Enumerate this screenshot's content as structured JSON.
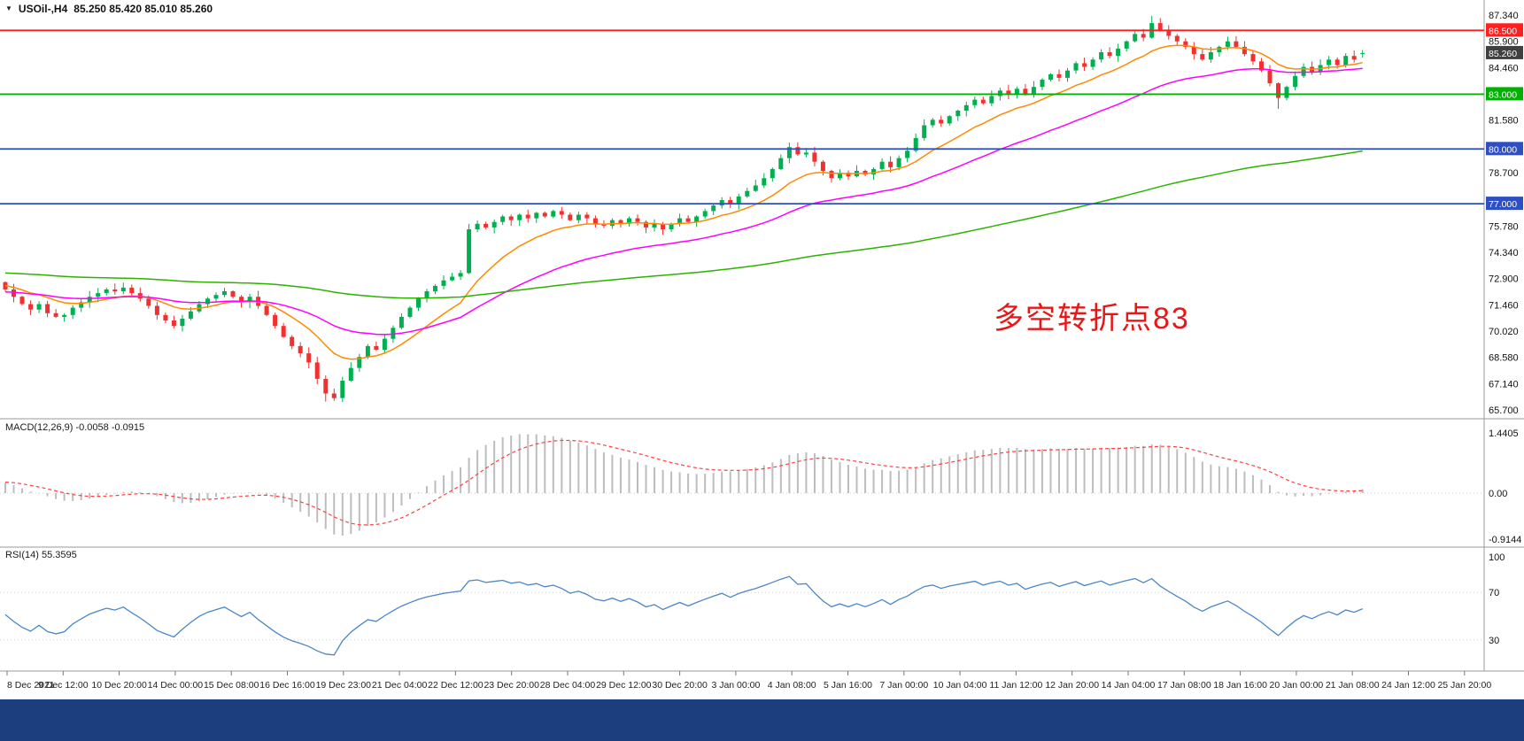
{
  "header": {
    "dropdown_icon": "▼",
    "symbol_label": "USOil-,H4",
    "ohlc_text": "85.250 85.420 85.010 85.260"
  },
  "annotation": {
    "text": "多空转折点83",
    "color": "#e81717"
  },
  "colors": {
    "up": "#00b050",
    "down": "#f23030",
    "macd_hist": "#bdbdbd",
    "macd_signal": "#ff4040",
    "rsi_line": "#4a86c8",
    "bottom_bar": "#1c3e7e",
    "axis_text": "#111111"
  },
  "panes": {
    "macd": {
      "title": "MACD(12,26,9) -0.0058 -0.0915",
      "levels": [
        "1.4405",
        "0.00",
        "-0.9144"
      ]
    },
    "rsi": {
      "title": "RSI(14) 55.3595",
      "levels": [
        {
          "text": "100",
          "value": 100
        },
        {
          "text": "70",
          "value": 70
        },
        {
          "text": "30",
          "value": 30
        }
      ]
    }
  },
  "chart_data": {
    "type": "candlestick",
    "symbol": "USOil-",
    "timeframe": "H4",
    "last_candle": {
      "open": 85.25,
      "high": 85.42,
      "low": 85.01,
      "close": 85.26
    },
    "y_range": [
      65.7,
      87.34
    ],
    "price_ticks": [
      {
        "text": "87.340",
        "value": 87.34
      },
      {
        "text": "85.900",
        "value": 85.9
      },
      {
        "text": "84.460",
        "value": 84.46
      },
      {
        "text": "81.580",
        "value": 81.58
      },
      {
        "text": "78.700",
        "value": 78.7
      },
      {
        "text": "75.780",
        "value": 75.78
      },
      {
        "text": "74.340",
        "value": 74.34
      },
      {
        "text": "72.900",
        "value": 72.9
      },
      {
        "text": "71.460",
        "value": 71.46
      },
      {
        "text": "70.020",
        "value": 70.02
      },
      {
        "text": "68.580",
        "value": 68.58
      },
      {
        "text": "67.140",
        "value": 67.14
      },
      {
        "text": "65.700",
        "value": 65.7
      }
    ],
    "price_badges": [
      {
        "text": "86.500",
        "value": 86.5,
        "bg": "#ff1f1f"
      },
      {
        "text": "85.260",
        "value": 85.26,
        "bg": "#3f3f3f"
      },
      {
        "text": "83.000",
        "value": 83.0,
        "bg": "#00b200"
      },
      {
        "text": "80.000",
        "value": 80.0,
        "bg": "#2e4fc4"
      },
      {
        "text": "77.000",
        "value": 77.0,
        "bg": "#2e4fc4"
      }
    ],
    "hlines": [
      {
        "label": "86.500",
        "value": 86.5,
        "color": "#ff1f1f"
      },
      {
        "label": "83.000",
        "value": 83.0,
        "color": "#00b200"
      },
      {
        "label": "80.000",
        "value": 80.0,
        "color": "#2e4fc4"
      },
      {
        "label": "77.000",
        "value": 77.0,
        "color": "#2e4fc4"
      }
    ],
    "time_labels": [
      "8 Dec 2021",
      "9 Dec 12:00",
      "10 Dec 20:00",
      "14 Dec 00:00",
      "15 Dec 08:00",
      "16 Dec 16:00",
      "19 Dec 23:00",
      "21 Dec 04:00",
      "22 Dec 12:00",
      "23 Dec 20:00",
      "28 Dec 04:00",
      "29 Dec 12:00",
      "30 Dec 20:00",
      "3 Jan 00:00",
      "4 Jan 08:00",
      "5 Jan 16:00",
      "7 Jan 00:00",
      "10 Jan 04:00",
      "11 Jan 12:00",
      "12 Jan 20:00",
      "14 Jan 04:00",
      "17 Jan 08:00",
      "18 Jan 16:00",
      "20 Jan 00:00",
      "21 Jan 08:00",
      "24 Jan 12:00",
      "25 Jan 20:00"
    ],
    "moving_averages": [
      {
        "name": "ma-fast",
        "period": 12,
        "color": "#ff8a00"
      },
      {
        "name": "ma-mid",
        "period": 34,
        "color": "#ff00ff"
      },
      {
        "name": "ma-slow",
        "period": 144,
        "color": "#2db200"
      }
    ],
    "indicators": [
      {
        "name": "MACD",
        "params": [
          12,
          26,
          9
        ],
        "current": [
          -0.0058,
          -0.0915
        ]
      },
      {
        "name": "RSI",
        "params": [
          14
        ],
        "current": 55.3595
      }
    ],
    "closes": [
      72.3,
      71.9,
      71.5,
      71.2,
      71.5,
      71.0,
      70.8,
      70.9,
      71.3,
      71.6,
      71.9,
      72.1,
      72.3,
      72.2,
      72.4,
      72.1,
      71.8,
      71.4,
      70.9,
      70.6,
      70.3,
      70.7,
      71.1,
      71.5,
      71.8,
      72.0,
      72.2,
      71.9,
      71.6,
      71.9,
      71.4,
      70.9,
      70.3,
      69.7,
      69.2,
      68.8,
      68.3,
      67.4,
      66.6,
      66.35,
      67.3,
      68.0,
      68.6,
      69.2,
      69.0,
      69.6,
      70.2,
      70.8,
      71.3,
      71.8,
      72.2,
      72.5,
      72.8,
      73.0,
      73.2,
      75.6,
      75.9,
      75.7,
      76.0,
      76.3,
      76.1,
      76.4,
      76.2,
      76.5,
      76.3,
      76.6,
      76.4,
      76.1,
      76.4,
      76.2,
      75.9,
      75.8,
      76.1,
      75.9,
      76.2,
      76.0,
      75.7,
      75.9,
      75.6,
      75.9,
      76.2,
      76.0,
      76.3,
      76.6,
      76.9,
      77.2,
      77.0,
      77.4,
      77.7,
      78.0,
      78.4,
      78.9,
      79.5,
      80.1,
      79.7,
      79.8,
      79.3,
      78.8,
      78.4,
      78.7,
      78.5,
      78.8,
      78.6,
      78.9,
      79.3,
      79.0,
      79.5,
      79.9,
      80.6,
      81.3,
      81.6,
      81.4,
      81.8,
      82.1,
      82.4,
      82.7,
      82.5,
      82.9,
      83.2,
      83.0,
      83.3,
      83.0,
      83.4,
      83.8,
      84.1,
      83.9,
      84.3,
      84.7,
      84.5,
      84.9,
      85.3,
      85.1,
      85.5,
      85.9,
      86.3,
      86.1,
      86.9,
      86.5,
      86.2,
      85.9,
      85.6,
      85.2,
      84.9,
      85.3,
      85.6,
      85.9,
      85.6,
      85.2,
      84.8,
      84.3,
      83.6,
      82.8,
      83.4,
      84.0,
      84.5,
      84.2,
      84.6,
      84.9,
      84.6,
      85.1,
      84.9,
      85.26
    ],
    "pre_window_closes": [
      74.8,
      74.6,
      74.7,
      74.4,
      74.2,
      74.3,
      74.0,
      73.8,
      73.9,
      73.6,
      73.4,
      73.2,
      73.3,
      73.0,
      72.7,
      72.4,
      72.5,
      72.1,
      71.8,
      71.5,
      71.6,
      71.2,
      70.9,
      70.6,
      70.7,
      70.3,
      70.0,
      69.8,
      69.9,
      69.6,
      69.7,
      69.9,
      70.2,
      70.0,
      70.4,
      70.7,
      70.5,
      70.9,
      71.2,
      71.0,
      71.4,
      71.7,
      71.5,
      71.9,
      72.2,
      72.0,
      72.3,
      72.5,
      72.3,
      72.6,
      72.4,
      72.7,
      72.5,
      72.8,
      72.6,
      72.9,
      72.7,
      72.8,
      72.6,
      72.7
    ],
    "wick_overrides": {
      "38": {
        "low": 66.15
      },
      "39": {
        "low": 66.2
      },
      "93": {
        "high": 80.35
      },
      "136": {
        "high": 87.3
      },
      "151": {
        "low": 82.2
      },
      "161": {
        "open": 85.25,
        "high": 85.42,
        "low": 85.01
      }
    }
  }
}
